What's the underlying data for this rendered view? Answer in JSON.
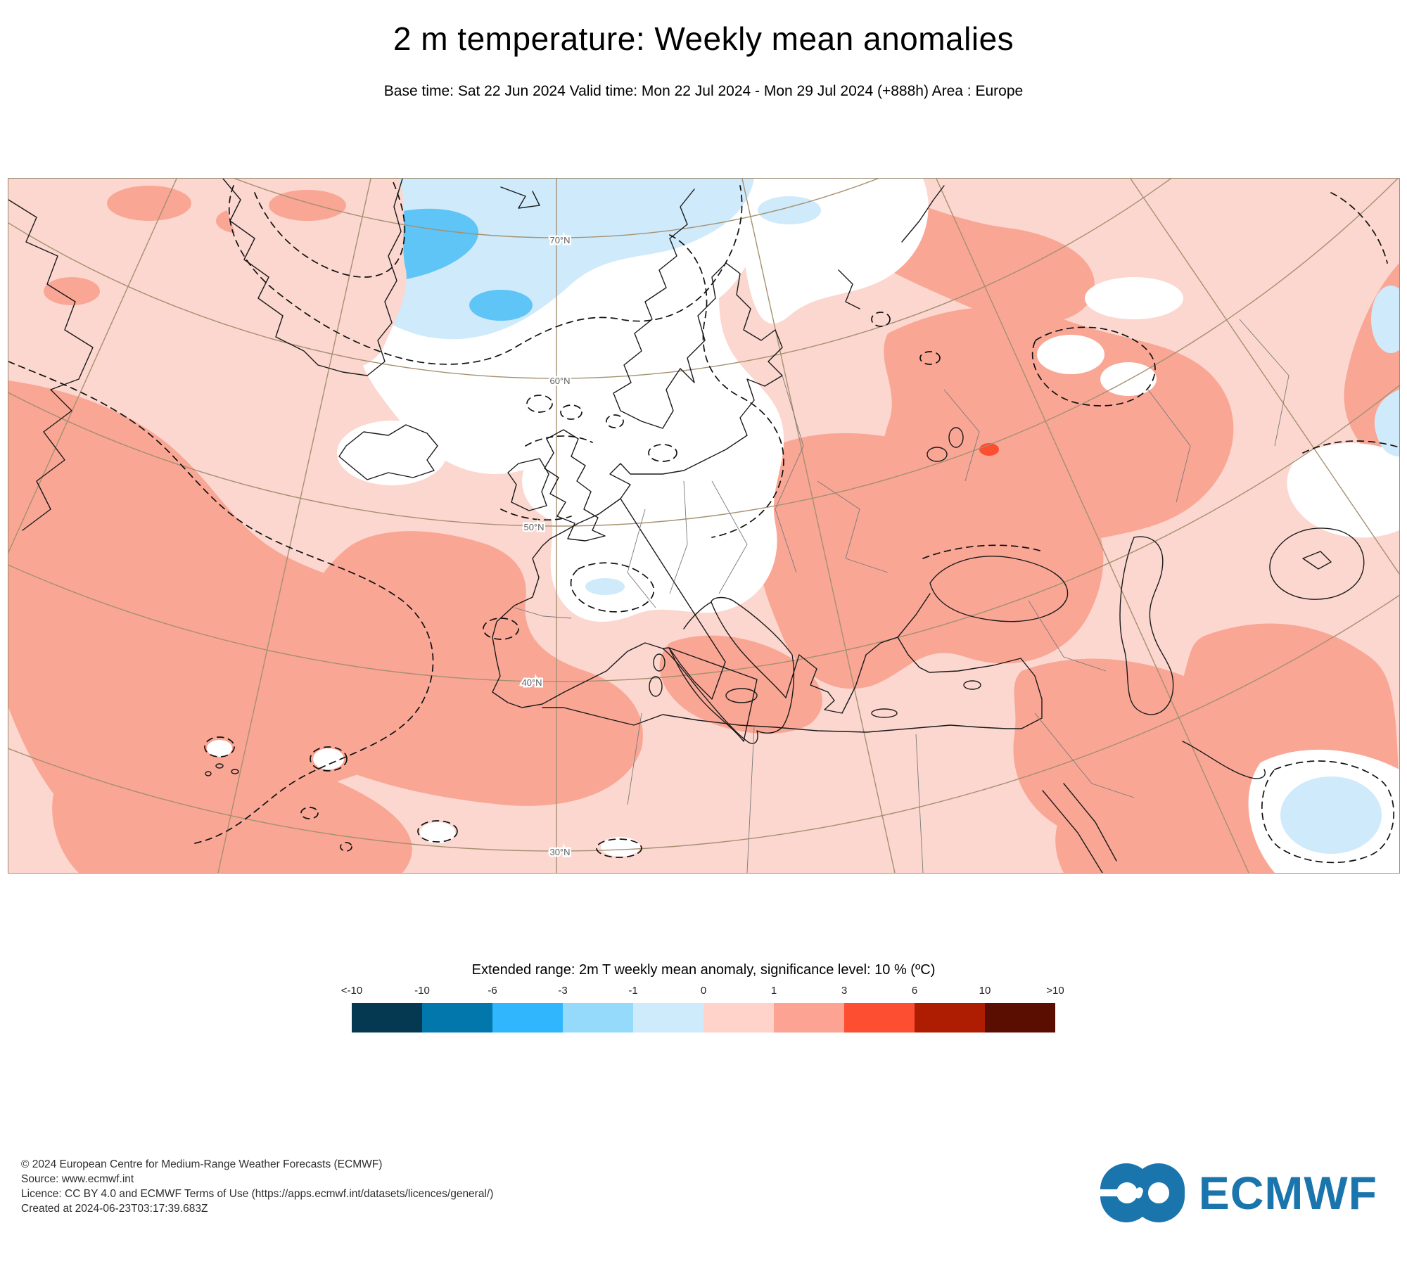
{
  "header": {
    "title": "2 m temperature: Weekly mean anomalies",
    "subtitle": "Base time: Sat 22 Jun 2024 Valid time: Mon 22 Jul 2024 - Mon 29 Jul 2024 (+888h) Area : Europe"
  },
  "map": {
    "area": "Europe",
    "latitude_labels": [
      "70°N",
      "60°N",
      "50°N",
      "40°N",
      "30°N"
    ],
    "colors": {
      "background_pink_0_1": "#fbd7cf",
      "warm_salmon_1_3": "#f9a695",
      "hot_red_3_6": "#fd4e31",
      "cool_light_blue_neg1_0": "#cfeafb",
      "cool_blue_neg3_neg1": "#5fc4f6",
      "neutral_white": "#ffffff",
      "graticule": "#a59070",
      "coastline": "#1a1a1a"
    }
  },
  "legend": {
    "title": "Extended range: 2m T weekly mean anomaly, significance level: 10 % (ºC)",
    "tick_labels": [
      "<-10",
      "-10",
      "-6",
      "-3",
      "-1",
      "0",
      "1",
      "3",
      "6",
      "10",
      ">10"
    ],
    "swatches": [
      "#053952",
      "#0277ab",
      "#2fb6fc",
      "#95d9fb",
      "#cdebfb",
      "#ffd2ca",
      "#fda394",
      "#fd4e31",
      "#ae1c02",
      "#5a0d01"
    ]
  },
  "footer": {
    "lines": [
      "© 2024 European Centre for Medium-Range Weather Forecasts (ECMWF)",
      "Source: www.ecmwf.int",
      "Licence: CC BY 4.0 and ECMWF Terms of Use (https://apps.ecmwf.int/datasets/licences/general/)",
      "Created at 2024-06-23T03:17:39.683Z"
    ],
    "logo_text": "ECMWF",
    "logo_color": "#1b75ad"
  }
}
